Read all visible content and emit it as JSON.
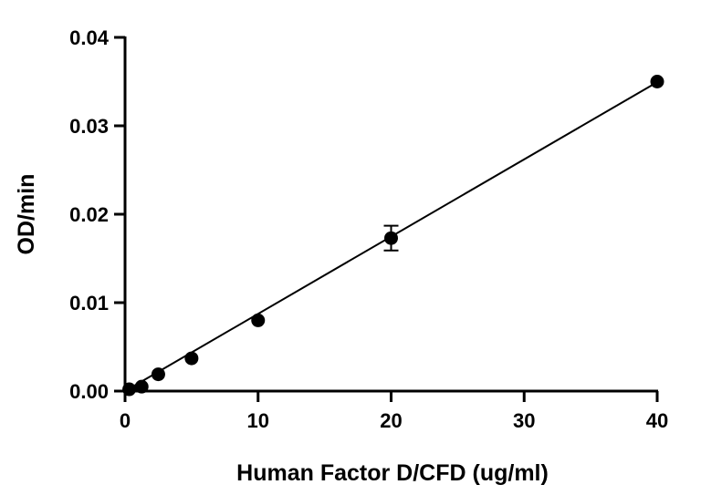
{
  "chart_data": {
    "type": "scatter",
    "title": "",
    "xlabel": "Human Factor D/CFD (ug/ml)",
    "ylabel": "OD/min",
    "xlim": [
      0,
      40
    ],
    "ylim": [
      0,
      0.04
    ],
    "xticks": [
      "0",
      "10",
      "20",
      "30",
      "40"
    ],
    "yticks": [
      "0.00",
      "0.01",
      "0.02",
      "0.03",
      "0.04"
    ],
    "grid": false,
    "marker_color": "#000000",
    "points": [
      {
        "x": 0.3125,
        "y": 0.0002
      },
      {
        "x": 1.25,
        "y": 0.0005
      },
      {
        "x": 2.5,
        "y": 0.0019
      },
      {
        "x": 5,
        "y": 0.0037
      },
      {
        "x": 10,
        "y": 0.008
      },
      {
        "x": 20,
        "y": 0.0173,
        "err": 0.0014
      },
      {
        "x": 40,
        "y": 0.035
      }
    ],
    "fit_line": {
      "slope": 0.000876,
      "intercept": -0.0001
    }
  }
}
